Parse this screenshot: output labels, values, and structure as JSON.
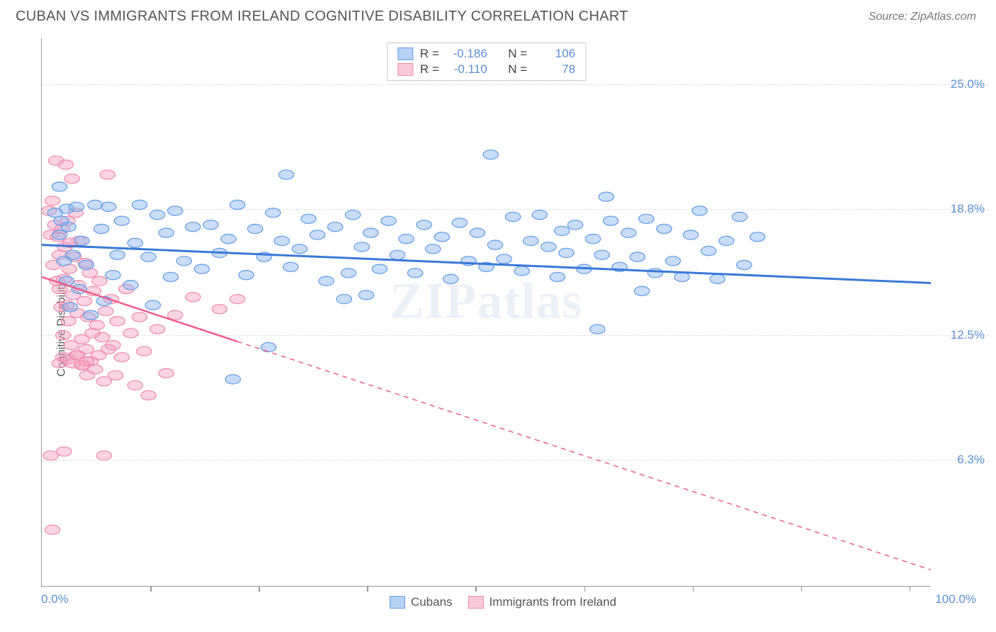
{
  "title": "CUBAN VS IMMIGRANTS FROM IRELAND COGNITIVE DISABILITY CORRELATION CHART",
  "source_label": "Source: ZipAtlas.com",
  "watermark": "ZIPatlas",
  "ylabel": "Cognitive Disability",
  "chart": {
    "type": "scatter-correlation",
    "background_color": "#ffffff",
    "border_color": "#999999",
    "grid_color": "#dddddd",
    "grid_dash": "6,5",
    "xlim": [
      0,
      100
    ],
    "ylim": [
      0,
      27.3
    ],
    "xaxis_left_label": "0.0%",
    "xaxis_right_label": "100.0%",
    "xtick_positions_pct": [
      12.2,
      24.4,
      36.6,
      48.8,
      61.0,
      73.2,
      85.4,
      97.6
    ],
    "yticks": [
      {
        "value": 25.0,
        "label": "25.0%"
      },
      {
        "value": 18.8,
        "label": "18.8%"
      },
      {
        "value": 12.5,
        "label": "12.5%"
      },
      {
        "value": 6.3,
        "label": "6.3%"
      }
    ],
    "axis_label_color": "#5b8fd6",
    "axis_label_fontsize": 17,
    "title_fontsize": 20,
    "title_color": "#555555"
  },
  "legend_top": {
    "rows": [
      {
        "swatch_fill": "#b7d1f4",
        "swatch_stroke": "#6aa0e6",
        "r_label": "R =",
        "r_value": "-0.186",
        "n_label": "N =",
        "n_value": "106"
      },
      {
        "swatch_fill": "#f9c9d7",
        "swatch_stroke": "#ef8fb0",
        "r_label": "R =",
        "r_value": "-0.110",
        "n_label": "N =",
        "n_value": "78"
      }
    ]
  },
  "legend_bottom": {
    "items": [
      {
        "swatch_fill": "#b7d1f4",
        "swatch_stroke": "#6aa0e6",
        "label": "Cubans"
      },
      {
        "swatch_fill": "#f9c9d7",
        "swatch_stroke": "#ef8fb0",
        "label": "Immigrants from Ireland"
      }
    ]
  },
  "series": [
    {
      "name": "cubans",
      "marker_fill": "rgba(135,180,240,0.45)",
      "marker_stroke": "#6aa0e6",
      "marker_radius": 10,
      "line_color": "#3b78d8",
      "line_width": 3,
      "line_dash": "none",
      "regression": {
        "x1": 0,
        "y1": 17.0,
        "x2": 100,
        "y2": 15.1
      },
      "points": [
        [
          1.5,
          18.6
        ],
        [
          2.0,
          19.9
        ],
        [
          2.2,
          18.2
        ],
        [
          2.8,
          18.8
        ],
        [
          3.0,
          17.9
        ],
        [
          3.5,
          16.5
        ],
        [
          3.9,
          18.9
        ],
        [
          4.5,
          17.2
        ],
        [
          5.0,
          16.0
        ],
        [
          6.0,
          19.0
        ],
        [
          6.7,
          17.8
        ],
        [
          7.5,
          18.9
        ],
        [
          8.0,
          15.5
        ],
        [
          9.0,
          18.2
        ],
        [
          10.0,
          15.0
        ],
        [
          10.5,
          17.1
        ],
        [
          11.0,
          19.0
        ],
        [
          12.0,
          16.4
        ],
        [
          13.0,
          18.5
        ],
        [
          14.0,
          17.6
        ],
        [
          15.0,
          18.7
        ],
        [
          16.0,
          16.2
        ],
        [
          17.0,
          17.9
        ],
        [
          18.0,
          15.8
        ],
        [
          19.0,
          18.0
        ],
        [
          20.0,
          16.6
        ],
        [
          21.0,
          17.3
        ],
        [
          21.5,
          10.3
        ],
        [
          22.0,
          19.0
        ],
        [
          23.0,
          15.5
        ],
        [
          24.0,
          17.8
        ],
        [
          25.0,
          16.4
        ],
        [
          25.5,
          11.9
        ],
        [
          26.0,
          18.6
        ],
        [
          27.0,
          17.2
        ],
        [
          27.5,
          20.5
        ],
        [
          28.0,
          15.9
        ],
        [
          29.0,
          16.8
        ],
        [
          30.0,
          18.3
        ],
        [
          31.0,
          17.5
        ],
        [
          32.0,
          15.2
        ],
        [
          33.0,
          17.9
        ],
        [
          34.0,
          14.3
        ],
        [
          34.5,
          15.6
        ],
        [
          35.0,
          18.5
        ],
        [
          36.0,
          16.9
        ],
        [
          36.5,
          14.5
        ],
        [
          37.0,
          17.6
        ],
        [
          38.0,
          15.8
        ],
        [
          39.0,
          18.2
        ],
        [
          40.0,
          16.5
        ],
        [
          41.0,
          17.3
        ],
        [
          42.0,
          15.6
        ],
        [
          43.0,
          18.0
        ],
        [
          44.0,
          16.8
        ],
        [
          45.0,
          17.4
        ],
        [
          46.0,
          15.3
        ],
        [
          47.0,
          18.1
        ],
        [
          48.0,
          16.2
        ],
        [
          49.0,
          17.6
        ],
        [
          50.0,
          15.9
        ],
        [
          50.5,
          21.5
        ],
        [
          51.0,
          17.0
        ],
        [
          52.0,
          16.3
        ],
        [
          53.0,
          18.4
        ],
        [
          54.0,
          15.7
        ],
        [
          55.0,
          17.2
        ],
        [
          56.0,
          18.5
        ],
        [
          57.0,
          16.9
        ],
        [
          58.0,
          15.4
        ],
        [
          58.5,
          17.7
        ],
        [
          59.0,
          16.6
        ],
        [
          60.0,
          18.0
        ],
        [
          61.0,
          15.8
        ],
        [
          62.0,
          17.3
        ],
        [
          62.5,
          12.8
        ],
        [
          63.0,
          16.5
        ],
        [
          63.5,
          19.4
        ],
        [
          64.0,
          18.2
        ],
        [
          65.0,
          15.9
        ],
        [
          66.0,
          17.6
        ],
        [
          67.0,
          16.4
        ],
        [
          67.5,
          14.7
        ],
        [
          68.0,
          18.3
        ],
        [
          69.0,
          15.6
        ],
        [
          70.0,
          17.8
        ],
        [
          71.0,
          16.2
        ],
        [
          72.0,
          15.4
        ],
        [
          73.0,
          17.5
        ],
        [
          74.0,
          18.7
        ],
        [
          75.0,
          16.7
        ],
        [
          76.0,
          15.3
        ],
        [
          77.0,
          17.2
        ],
        [
          78.5,
          18.4
        ],
        [
          79.0,
          16.0
        ],
        [
          80.5,
          17.4
        ],
        [
          2.5,
          16.2
        ],
        [
          3.2,
          13.9
        ],
        [
          4.2,
          14.8
        ],
        [
          5.5,
          13.5
        ],
        [
          7.0,
          14.2
        ],
        [
          8.5,
          16.5
        ],
        [
          2.0,
          17.5
        ],
        [
          2.8,
          15.2
        ],
        [
          12.5,
          14.0
        ],
        [
          14.5,
          15.4
        ]
      ]
    },
    {
      "name": "ireland",
      "marker_fill": "rgba(245,160,190,0.45)",
      "marker_stroke": "#ef8fb0",
      "marker_radius": 10,
      "line_color": "#ef5d8a",
      "line_width": 2.5,
      "line_dash": "7,6",
      "regression": {
        "x1": 0,
        "y1": 15.4,
        "x2": 100,
        "y2": 0.8
      },
      "solid_until_x": 22,
      "points": [
        [
          0.8,
          18.7
        ],
        [
          1.0,
          17.5
        ],
        [
          1.2,
          19.2
        ],
        [
          1.3,
          16.0
        ],
        [
          1.5,
          18.0
        ],
        [
          1.7,
          15.2
        ],
        [
          1.8,
          17.4
        ],
        [
          2.0,
          14.8
        ],
        [
          2.0,
          16.5
        ],
        [
          2.2,
          13.9
        ],
        [
          2.3,
          17.8
        ],
        [
          2.4,
          12.5
        ],
        [
          2.5,
          15.3
        ],
        [
          2.6,
          16.9
        ],
        [
          2.8,
          14.0
        ],
        [
          2.9,
          18.2
        ],
        [
          3.0,
          13.2
        ],
        [
          3.1,
          15.8
        ],
        [
          3.2,
          17.1
        ],
        [
          3.3,
          12.0
        ],
        [
          3.5,
          14.5
        ],
        [
          3.6,
          16.4
        ],
        [
          3.8,
          18.6
        ],
        [
          3.9,
          11.5
        ],
        [
          4.0,
          13.6
        ],
        [
          4.1,
          15.0
        ],
        [
          4.2,
          17.2
        ],
        [
          4.5,
          12.3
        ],
        [
          4.6,
          11.0
        ],
        [
          4.8,
          14.2
        ],
        [
          4.9,
          16.1
        ],
        [
          5.0,
          11.8
        ],
        [
          5.1,
          10.5
        ],
        [
          5.2,
          13.4
        ],
        [
          5.4,
          15.6
        ],
        [
          5.5,
          11.2
        ],
        [
          5.7,
          12.6
        ],
        [
          5.8,
          14.7
        ],
        [
          6.0,
          10.8
        ],
        [
          6.2,
          13.0
        ],
        [
          6.4,
          11.5
        ],
        [
          6.5,
          15.2
        ],
        [
          6.8,
          12.4
        ],
        [
          7.0,
          10.2
        ],
        [
          7.2,
          13.7
        ],
        [
          7.5,
          11.8
        ],
        [
          7.8,
          14.3
        ],
        [
          8.0,
          12.0
        ],
        [
          8.3,
          10.5
        ],
        [
          8.5,
          13.2
        ],
        [
          9.0,
          11.4
        ],
        [
          9.5,
          14.8
        ],
        [
          10.0,
          12.6
        ],
        [
          10.5,
          10.0
        ],
        [
          11.0,
          13.4
        ],
        [
          11.5,
          11.7
        ],
        [
          12.0,
          9.5
        ],
        [
          13.0,
          12.8
        ],
        [
          14.0,
          10.6
        ],
        [
          15.0,
          13.5
        ],
        [
          17.0,
          14.4
        ],
        [
          20.0,
          13.8
        ],
        [
          22.0,
          14.3
        ],
        [
          1.6,
          21.2
        ],
        [
          2.7,
          21.0
        ],
        [
          3.4,
          20.3
        ],
        [
          7.4,
          20.5
        ],
        [
          1.0,
          6.5
        ],
        [
          2.5,
          6.7
        ],
        [
          7.0,
          6.5
        ],
        [
          1.2,
          2.8
        ],
        [
          2.0,
          11.1
        ],
        [
          2.4,
          11.4
        ],
        [
          3.0,
          11.3
        ],
        [
          3.5,
          11.1
        ],
        [
          4.0,
          11.5
        ],
        [
          4.5,
          11.0
        ],
        [
          5.0,
          11.2
        ]
      ]
    }
  ]
}
